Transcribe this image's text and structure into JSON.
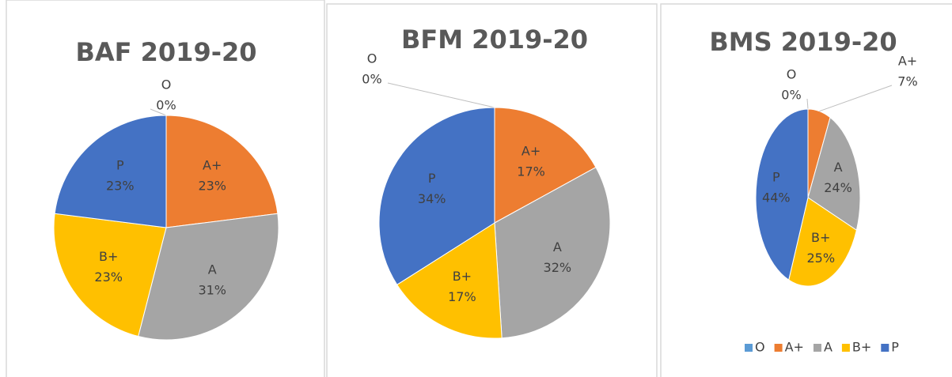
{
  "chart_data": [
    {
      "type": "pie",
      "title": "BAF 2019-20",
      "categories": [
        "O",
        "A+",
        "A",
        "B+",
        "P"
      ],
      "values": [
        0,
        23,
        31,
        23,
        23
      ],
      "value_labels": [
        "0%",
        "23%",
        "31%",
        "23%",
        "23%"
      ],
      "colors": [
        "#5b9bd5",
        "#ed7d31",
        "#a5a5a5",
        "#ffc000",
        "#4472c4"
      ]
    },
    {
      "type": "pie",
      "title": "BFM 2019-20",
      "categories": [
        "O",
        "A+",
        "A",
        "B+",
        "P"
      ],
      "values": [
        0,
        17,
        32,
        17,
        34
      ],
      "value_labels": [
        "0%",
        "17%",
        "32%",
        "17%",
        "34%"
      ],
      "colors": [
        "#5b9bd5",
        "#ed7d31",
        "#a5a5a5",
        "#ffc000",
        "#4472c4"
      ]
    },
    {
      "type": "pie",
      "title": "BMS 2019-20",
      "categories": [
        "O",
        "A+",
        "A",
        "B+",
        "P"
      ],
      "values": [
        0,
        7,
        24,
        25,
        44
      ],
      "value_labels": [
        "0%",
        "7%",
        "24%",
        "25%",
        "44%"
      ],
      "colors": [
        "#5b9bd5",
        "#ed7d31",
        "#a5a5a5",
        "#ffc000",
        "#4472c4"
      ],
      "legend": "bottom"
    }
  ]
}
